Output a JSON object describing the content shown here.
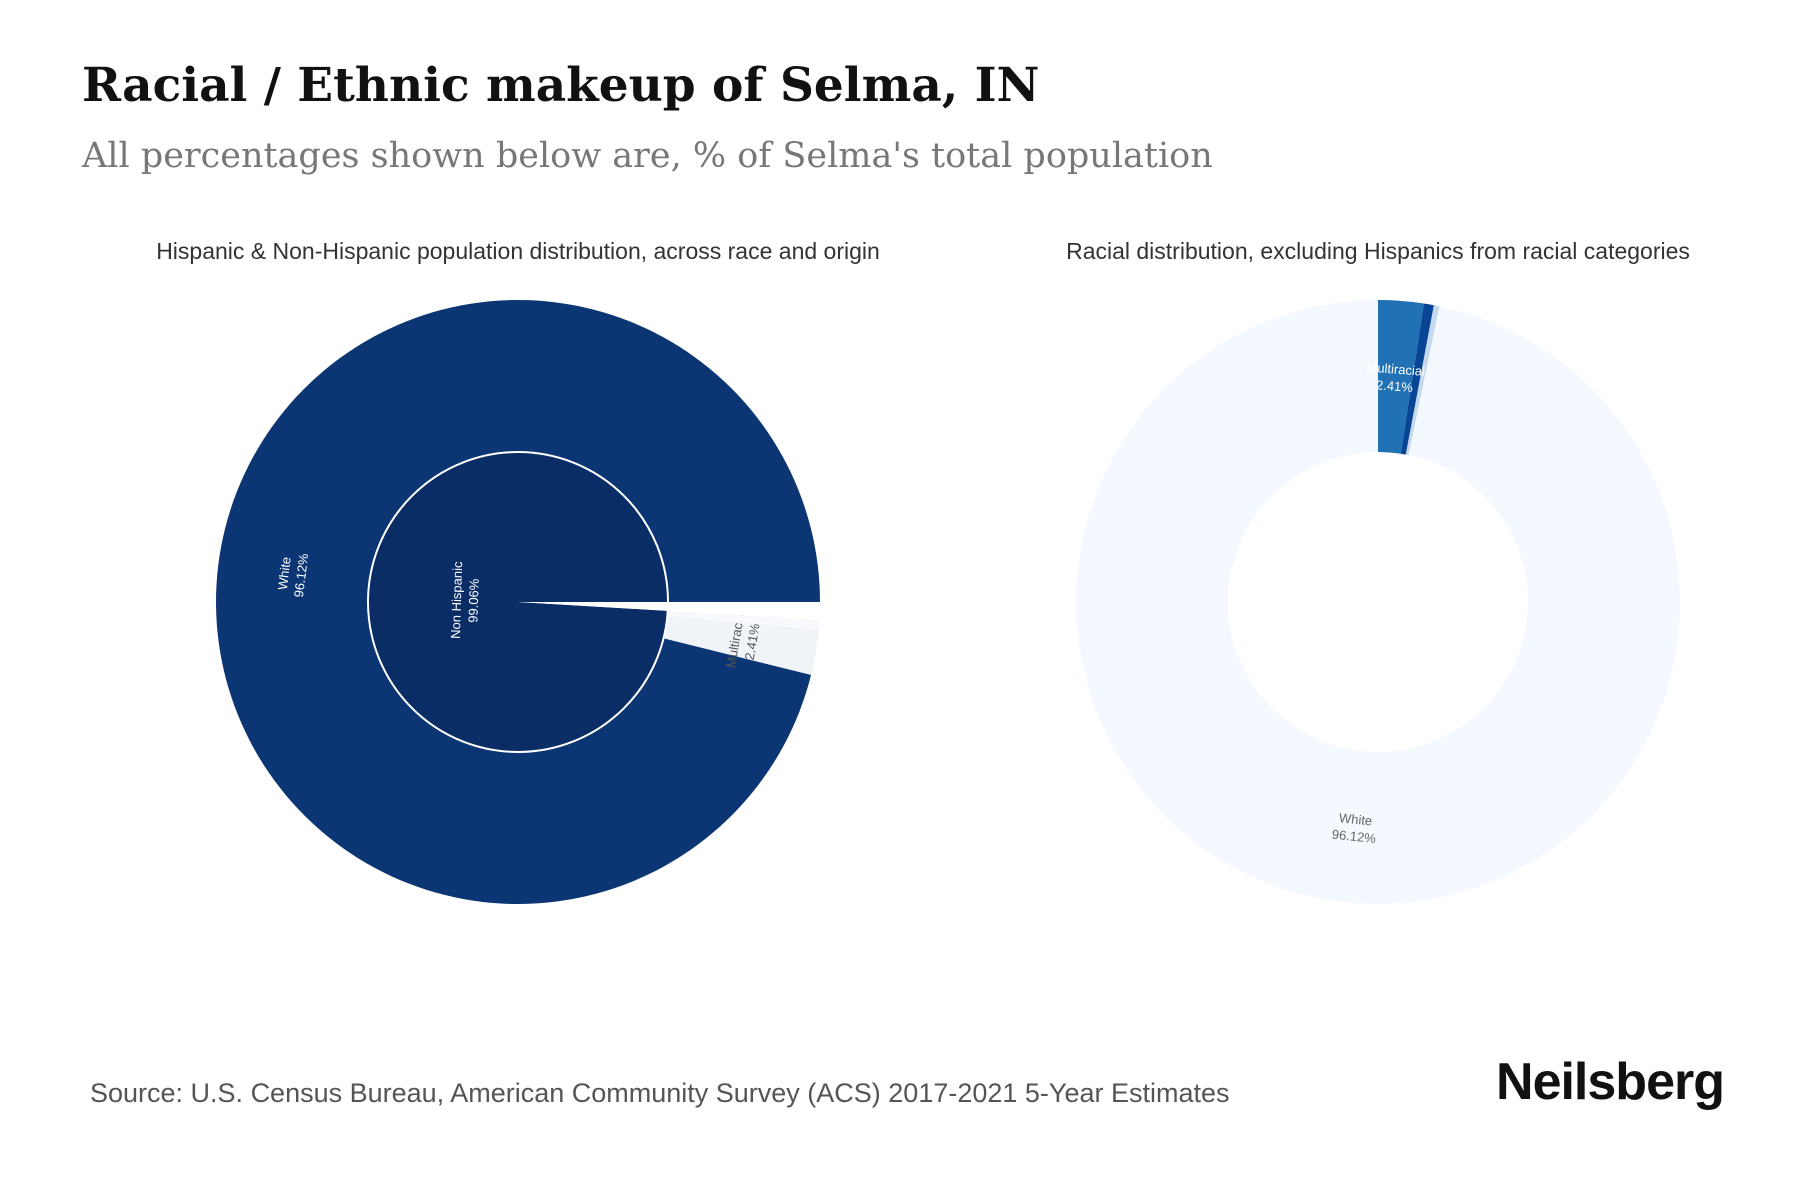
{
  "header": {
    "title": "Racial / Ethnic makeup of Selma, IN",
    "subtitle": "All percentages shown below are, % of Selma's total population"
  },
  "chart_data": [
    {
      "type": "pie",
      "title": "Hispanic & Non-Hispanic population distribution, across race and origin",
      "inner_ring": [
        {
          "label": "Non Hispanic",
          "value": 99.06,
          "value_label": "99.06%",
          "color": "#0b2d66"
        },
        {
          "label": "Hispanic",
          "value": 0.94,
          "color": "#ffffff"
        }
      ],
      "outer_ring": [
        {
          "label": "White",
          "value": 96.12,
          "value_label": "96.12%",
          "color": "#0b3673"
        },
        {
          "label": "Multiracial",
          "value": 2.41,
          "value_label": "2.41%",
          "color": "#f0f4f9"
        },
        {
          "label": "",
          "value": 0.53,
          "color": "#f7f9fc"
        },
        {
          "label": "",
          "value": 0.94,
          "color": "#ffffff"
        }
      ]
    },
    {
      "type": "donut",
      "title": "Racial distribution, excluding Hispanics from racial categories",
      "slices": [
        {
          "label": "White",
          "value": 96.12,
          "value_label": "96.12%",
          "color": "#f4f9ff"
        },
        {
          "label": "",
          "value": 0.3,
          "color": "#c5d9ee"
        },
        {
          "label": "",
          "value": 0.53,
          "color": "#084594"
        },
        {
          "label": "Multiracial",
          "value": 2.41,
          "value_label": "2.41%",
          "color": "#2171b5"
        }
      ]
    }
  ],
  "footer": {
    "source": "Source: U.S. Census Bureau, American Community Survey (ACS) 2017-2021 5-Year Estimates",
    "brand": "Neilsberg"
  }
}
